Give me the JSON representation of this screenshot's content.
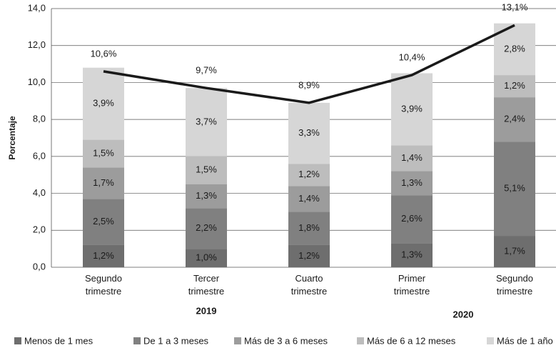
{
  "chart_data": {
    "type": "stacked_bar_line",
    "y_label": "Porcentaje",
    "categories": [
      "Segundo trimestre",
      "Tercer trimestre",
      "Cuarto trimestre",
      "Primer trimestre",
      "Segundo trimestre"
    ],
    "x_group_labels": [
      "2019",
      "2020"
    ],
    "series": [
      {
        "name": "Menos de 1 mes",
        "color": "#6e6e6e",
        "values": [
          1.2,
          1.0,
          1.2,
          1.3,
          1.7
        ],
        "value_labels": [
          "1,2%",
          "1,0%",
          "1,2%",
          "1,3%",
          "1,7%"
        ]
      },
      {
        "name": "De 1 a 3 meses",
        "color": "#808080",
        "values": [
          2.5,
          2.2,
          1.8,
          2.6,
          5.1
        ],
        "value_labels": [
          "2,5%",
          "2,2%",
          "1,8%",
          "2,6%",
          "5,1%"
        ]
      },
      {
        "name": "Más de 3 a 6 meses",
        "color": "#9c9c9c",
        "values": [
          1.7,
          1.3,
          1.4,
          1.3,
          2.4
        ],
        "value_labels": [
          "1,7%",
          "1,3%",
          "1,4%",
          "1,3%",
          "2,4%"
        ]
      },
      {
        "name": "Más de 6 a 12 meses",
        "color": "#bdbdbd",
        "values": [
          1.5,
          1.5,
          1.2,
          1.4,
          1.2
        ],
        "value_labels": [
          "1,5%",
          "1,5%",
          "1,2%",
          "1,4%",
          "1,2%"
        ]
      },
      {
        "name": "Más de 1 año",
        "color": "#d6d6d6",
        "values": [
          3.9,
          3.7,
          3.3,
          3.9,
          2.8
        ],
        "value_labels": [
          "3,9%",
          "3,7%",
          "3,3%",
          "3,9%",
          "2,8%"
        ]
      }
    ],
    "line": {
      "color": "#1a1a1a",
      "values": [
        10.6,
        9.7,
        8.9,
        10.4,
        13.1
      ],
      "value_labels": [
        "10,6%",
        "9,7%",
        "8,9%",
        "10,4%",
        "13,1%"
      ]
    },
    "ylim": [
      0,
      14
    ],
    "yticks": [
      {
        "value": 0,
        "label": "0,0"
      },
      {
        "value": 2,
        "label": "2,0"
      },
      {
        "value": 4,
        "label": "4,0"
      },
      {
        "value": 6,
        "label": "6,0"
      },
      {
        "value": 8,
        "label": "8,0"
      },
      {
        "value": 10,
        "label": "10,0"
      },
      {
        "value": 12,
        "label": "12,0"
      },
      {
        "value": 14,
        "label": "14,0"
      }
    ],
    "grid": true,
    "legend": "bottom"
  }
}
